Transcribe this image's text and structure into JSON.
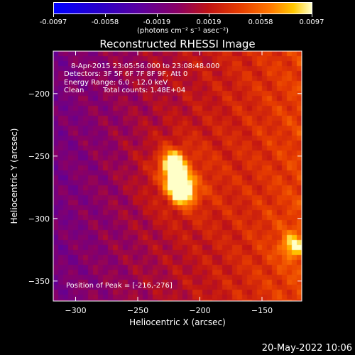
{
  "colorbar": {
    "ticks": [
      "-0.0097",
      "-0.0058",
      "-0.0019",
      "0.0019",
      "0.0058",
      "0.0097"
    ],
    "units": "(photons cm⁻² s⁻¹ asec⁻²)"
  },
  "image_info": {
    "time_range": "8-Apr-2015 23:05:56.000 to 23:08:48.000",
    "detectors": "Detectors: 3F 5F 6F 7F 8F 9F, Att 0",
    "energy_range": "Energy Range: 6.0 - 12.0 keV",
    "algorithm": "Clean",
    "total_counts": "Total counts: 1.48E+04",
    "peak_position": "Position of Peak = [-216,-276]"
  },
  "footer_date": "20-May-2022 10:06",
  "chart_data": {
    "type": "heatmap",
    "title": "Reconstructed RHESSI Image",
    "xlabel": "Heliocentric X (arcsec)",
    "ylabel": "Heliocentric Y (arcsec)",
    "xlim": [
      -318,
      -118
    ],
    "ylim": [
      -366,
      -166
    ],
    "x_ticks": [
      -300,
      -250,
      -200,
      -150
    ],
    "y_ticks": [
      -200,
      -250,
      -300,
      -350
    ],
    "x_tick_labels": [
      "−300",
      "−250",
      "−200",
      "−150"
    ],
    "y_tick_labels": [
      "−200",
      "−250",
      "−300",
      "−350"
    ],
    "zlim": [
      -0.0097,
      0.0097
    ],
    "sources": [
      {
        "x": -222,
        "y": -255,
        "value": 0.0085
      },
      {
        "x": -218,
        "y": -270,
        "value": 0.0097
      },
      {
        "x": -213,
        "y": -280,
        "value": 0.008
      },
      {
        "x": -125,
        "y": -322,
        "value": 0.005
      }
    ]
  }
}
